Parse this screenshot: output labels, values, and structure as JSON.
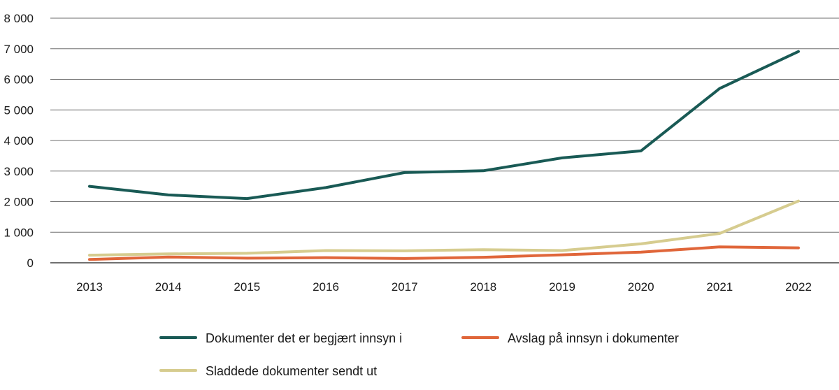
{
  "chart_data": {
    "type": "line",
    "title": "",
    "xlabel": "",
    "ylabel": "",
    "ylim": [
      0,
      8000
    ],
    "yticks": [
      0,
      1000,
      2000,
      3000,
      4000,
      5000,
      6000,
      7000,
      8000
    ],
    "ytick_labels": [
      "0",
      "1 000",
      "2 000",
      "3 000",
      "4 000",
      "5 000",
      "6 000",
      "7 000",
      "8 000"
    ],
    "categories": [
      "2013",
      "2014",
      "2015",
      "2016",
      "2017",
      "2018",
      "2019",
      "2020",
      "2021",
      "2022"
    ],
    "grid": true,
    "legend_position": "bottom",
    "series": [
      {
        "name": "Dokumenter det er begjært innsyn i",
        "color": "#195a55",
        "values": [
          2500,
          2220,
          2100,
          2460,
          2950,
          3010,
          3430,
          3660,
          5700,
          6910
        ]
      },
      {
        "name": "Avslag på innsyn i dokumenter",
        "color": "#e0663a",
        "values": [
          110,
          190,
          150,
          170,
          140,
          180,
          260,
          350,
          520,
          490
        ]
      },
      {
        "name": "Sladdede dokumenter sendt ut",
        "color": "#d6cc8f",
        "values": [
          250,
          290,
          310,
          400,
          390,
          430,
          400,
          620,
          960,
          2020
        ]
      }
    ]
  }
}
